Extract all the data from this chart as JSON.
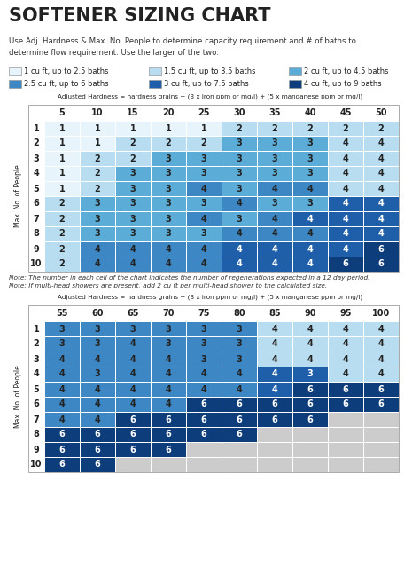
{
  "title": "SOFTENER SIZING CHART",
  "subtitle": "Use Adj. Hardness & Max. No. People to determine capacity requirement and # of baths to\ndetermine flow requirement. Use the larger of the two.",
  "legend": [
    {
      "color": "#e8f4fc",
      "label": "1 cu ft, up to 2.5 baths"
    },
    {
      "color": "#b8ddf0",
      "label": "1.5 cu ft, up to 3.5 baths"
    },
    {
      "color": "#5bacd6",
      "label": "2 cu ft, up to 4.5 baths"
    },
    {
      "color": "#3d88c4",
      "label": "2.5 cu ft, up to 6 baths"
    },
    {
      "color": "#1f5ea8",
      "label": "3 cu ft, up to 7.5 baths"
    },
    {
      "color": "#0d3d7a",
      "label": "4 cu ft, up to 9 baths"
    }
  ],
  "table1_header_label": "Adjusted Hardness = hardness grains + (3 x iron ppm or mg/l) + (5 x manganese ppm or mg/l)",
  "table1_cols": [
    "5",
    "10",
    "15",
    "20",
    "25",
    "30",
    "35",
    "40",
    "45",
    "50"
  ],
  "table1_rows": [
    "1",
    "2",
    "3",
    "4",
    "5",
    "6",
    "7",
    "8",
    "9",
    "10"
  ],
  "table1_data": [
    [
      1,
      1,
      1,
      1,
      1,
      2,
      2,
      2,
      2,
      2
    ],
    [
      1,
      1,
      2,
      2,
      2,
      3,
      3,
      3,
      4,
      4
    ],
    [
      1,
      2,
      2,
      3,
      3,
      3,
      3,
      3,
      4,
      4
    ],
    [
      1,
      2,
      3,
      3,
      3,
      3,
      3,
      3,
      4,
      4
    ],
    [
      1,
      2,
      3,
      3,
      4,
      3,
      4,
      4,
      4,
      4
    ],
    [
      2,
      3,
      3,
      3,
      3,
      4,
      3,
      3,
      4,
      4
    ],
    [
      2,
      3,
      3,
      3,
      4,
      3,
      4,
      4,
      4,
      4
    ],
    [
      2,
      3,
      3,
      3,
      3,
      4,
      4,
      4,
      4,
      4
    ],
    [
      2,
      4,
      4,
      4,
      4,
      4,
      4,
      4,
      4,
      6
    ],
    [
      2,
      4,
      4,
      4,
      4,
      4,
      4,
      4,
      6,
      6
    ]
  ],
  "table1_colors": [
    [
      "#e8f4fc",
      "#e8f4fc",
      "#e8f4fc",
      "#e8f4fc",
      "#e8f4fc",
      "#b8ddf0",
      "#b8ddf0",
      "#b8ddf0",
      "#b8ddf0",
      "#b8ddf0"
    ],
    [
      "#e8f4fc",
      "#e8f4fc",
      "#b8ddf0",
      "#b8ddf0",
      "#b8ddf0",
      "#5bacd6",
      "#5bacd6",
      "#5bacd6",
      "#b8ddf0",
      "#b8ddf0"
    ],
    [
      "#e8f4fc",
      "#b8ddf0",
      "#b8ddf0",
      "#5bacd6",
      "#5bacd6",
      "#5bacd6",
      "#5bacd6",
      "#5bacd6",
      "#b8ddf0",
      "#b8ddf0"
    ],
    [
      "#e8f4fc",
      "#b8ddf0",
      "#5bacd6",
      "#5bacd6",
      "#5bacd6",
      "#5bacd6",
      "#5bacd6",
      "#5bacd6",
      "#b8ddf0",
      "#b8ddf0"
    ],
    [
      "#e8f4fc",
      "#b8ddf0",
      "#5bacd6",
      "#5bacd6",
      "#3d88c4",
      "#5bacd6",
      "#3d88c4",
      "#3d88c4",
      "#b8ddf0",
      "#b8ddf0"
    ],
    [
      "#b8ddf0",
      "#5bacd6",
      "#5bacd6",
      "#5bacd6",
      "#5bacd6",
      "#3d88c4",
      "#5bacd6",
      "#5bacd6",
      "#1f5ea8",
      "#1f5ea8"
    ],
    [
      "#b8ddf0",
      "#5bacd6",
      "#5bacd6",
      "#5bacd6",
      "#3d88c4",
      "#5bacd6",
      "#3d88c4",
      "#1f5ea8",
      "#1f5ea8",
      "#1f5ea8"
    ],
    [
      "#b8ddf0",
      "#5bacd6",
      "#5bacd6",
      "#5bacd6",
      "#5bacd6",
      "#3d88c4",
      "#3d88c4",
      "#3d88c4",
      "#1f5ea8",
      "#1f5ea8"
    ],
    [
      "#b8ddf0",
      "#3d88c4",
      "#3d88c4",
      "#3d88c4",
      "#3d88c4",
      "#1f5ea8",
      "#1f5ea8",
      "#1f5ea8",
      "#1f5ea8",
      "#0d3d7a"
    ],
    [
      "#b8ddf0",
      "#3d88c4",
      "#3d88c4",
      "#3d88c4",
      "#3d88c4",
      "#1f5ea8",
      "#1f5ea8",
      "#1f5ea8",
      "#0d3d7a",
      "#0d3d7a"
    ]
  ],
  "note1": "Note: The number in each cell of the chart indicates the number of regenerations expected in a 12 day period.",
  "note2": "Note: If multi-head showers are present, add 2 cu ft per multi-head shower to the calculated size.",
  "table2_header_label": "Adjusted Hardness = hardness grains + (3 x iron ppm or mg/l) + (5 x manganese ppm or mg/l)",
  "table2_cols": [
    "55",
    "60",
    "65",
    "70",
    "75",
    "80",
    "85",
    "90",
    "95",
    "100"
  ],
  "table2_rows": [
    "1",
    "2",
    "3",
    "4",
    "5",
    "6",
    "7",
    "8",
    "9",
    "10"
  ],
  "table2_data": [
    [
      3,
      3,
      3,
      3,
      3,
      3,
      4,
      4,
      4,
      4
    ],
    [
      3,
      3,
      4,
      3,
      3,
      3,
      4,
      4,
      4,
      4
    ],
    [
      4,
      4,
      4,
      4,
      3,
      3,
      4,
      4,
      4,
      4
    ],
    [
      4,
      3,
      4,
      4,
      4,
      4,
      4,
      3,
      4,
      4
    ],
    [
      4,
      4,
      4,
      4,
      4,
      4,
      4,
      6,
      6,
      6
    ],
    [
      4,
      4,
      4,
      4,
      6,
      6,
      6,
      6,
      6,
      6
    ],
    [
      4,
      4,
      6,
      6,
      6,
      6,
      6,
      6,
      -1,
      -1
    ],
    [
      6,
      6,
      6,
      6,
      6,
      6,
      -1,
      -1,
      -1,
      -1
    ],
    [
      6,
      6,
      6,
      6,
      -1,
      -1,
      -1,
      -1,
      -1,
      -1
    ],
    [
      6,
      6,
      -1,
      -1,
      -1,
      -1,
      -1,
      -1,
      -1,
      -1
    ]
  ],
  "table2_colors": [
    [
      "#3d88c4",
      "#3d88c4",
      "#3d88c4",
      "#3d88c4",
      "#3d88c4",
      "#3d88c4",
      "#b8ddf0",
      "#b8ddf0",
      "#b8ddf0",
      "#b8ddf0"
    ],
    [
      "#3d88c4",
      "#3d88c4",
      "#3d88c4",
      "#3d88c4",
      "#3d88c4",
      "#3d88c4",
      "#b8ddf0",
      "#b8ddf0",
      "#b8ddf0",
      "#b8ddf0"
    ],
    [
      "#3d88c4",
      "#3d88c4",
      "#3d88c4",
      "#3d88c4",
      "#3d88c4",
      "#3d88c4",
      "#b8ddf0",
      "#b8ddf0",
      "#b8ddf0",
      "#b8ddf0"
    ],
    [
      "#3d88c4",
      "#3d88c4",
      "#3d88c4",
      "#3d88c4",
      "#3d88c4",
      "#3d88c4",
      "#1f5ea8",
      "#1f5ea8",
      "#b8ddf0",
      "#b8ddf0"
    ],
    [
      "#3d88c4",
      "#3d88c4",
      "#3d88c4",
      "#3d88c4",
      "#3d88c4",
      "#3d88c4",
      "#1f5ea8",
      "#0d3d7a",
      "#0d3d7a",
      "#0d3d7a"
    ],
    [
      "#3d88c4",
      "#3d88c4",
      "#3d88c4",
      "#3d88c4",
      "#0d3d7a",
      "#0d3d7a",
      "#0d3d7a",
      "#0d3d7a",
      "#0d3d7a",
      "#0d3d7a"
    ],
    [
      "#3d88c4",
      "#3d88c4",
      "#0d3d7a",
      "#0d3d7a",
      "#0d3d7a",
      "#0d3d7a",
      "#0d3d7a",
      "#0d3d7a",
      "#cccccc",
      "#cccccc"
    ],
    [
      "#0d3d7a",
      "#0d3d7a",
      "#0d3d7a",
      "#0d3d7a",
      "#0d3d7a",
      "#0d3d7a",
      "#cccccc",
      "#cccccc",
      "#cccccc",
      "#cccccc"
    ],
    [
      "#0d3d7a",
      "#0d3d7a",
      "#0d3d7a",
      "#0d3d7a",
      "#cccccc",
      "#cccccc",
      "#cccccc",
      "#cccccc",
      "#cccccc",
      "#cccccc"
    ],
    [
      "#0d3d7a",
      "#0d3d7a",
      "#cccccc",
      "#cccccc",
      "#cccccc",
      "#cccccc",
      "#cccccc",
      "#cccccc",
      "#cccccc",
      "#cccccc"
    ]
  ],
  "bg_color": "#ffffff",
  "text_color_dark": "#222222",
  "text_color_light": "#ffffff",
  "row_label": "Max. No. of People",
  "dark_colors": [
    "#1f5ea8",
    "#0d3d7a"
  ]
}
